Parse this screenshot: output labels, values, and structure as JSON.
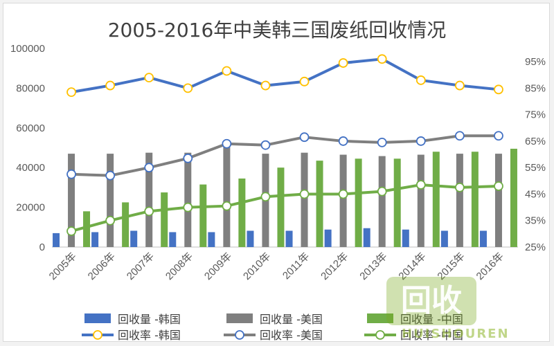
{
  "chart_data": {
    "type": "bar",
    "title": "2005-2016年中美韩三国废纸回收情况",
    "categories": [
      "2005年",
      "2006年",
      "2007年",
      "2008年",
      "2009年",
      "2010年",
      "2011年",
      "2012年",
      "2013年",
      "2014年",
      "2015年",
      "2016年"
    ],
    "left_axis": {
      "ylim": [
        0,
        100000
      ],
      "ticks": [
        "0",
        "20000",
        "40000",
        "60000",
        "80000",
        "100000"
      ]
    },
    "right_axis": {
      "ylim": [
        25,
        100
      ],
      "ticks": [
        "25%",
        "35%",
        "45%",
        "55%",
        "65%",
        "75%",
        "85%",
        "95%"
      ]
    },
    "series": [
      {
        "name": "回收量 -韩国",
        "type": "bar",
        "axis": "left",
        "color": "#4472c4",
        "values": [
          7000,
          7500,
          8200,
          7500,
          7500,
          8200,
          8200,
          8800,
          9500,
          8800,
          8200,
          8200
        ]
      },
      {
        "name": "回收量 -美国",
        "type": "bar",
        "axis": "left",
        "color": "#7f7f7f",
        "values": [
          47000,
          47000,
          47500,
          47500,
          51500,
          47000,
          47500,
          46500,
          45800,
          46500,
          47000,
          47000
        ]
      },
      {
        "name": "回收量 -中国",
        "type": "bar",
        "axis": "left",
        "color": "#70ad47",
        "values": [
          18000,
          22500,
          27500,
          31500,
          34500,
          40000,
          43500,
          44500,
          44500,
          48000,
          48000,
          49500
        ]
      },
      {
        "name": "回收率 -韩国",
        "type": "line",
        "axis": "right",
        "color": "#4472c4",
        "marker": "#ffc000",
        "values": [
          83.5,
          86,
          89,
          85,
          91.5,
          86,
          87.5,
          94.5,
          96,
          88,
          86,
          84.5
        ]
      },
      {
        "name": "回收率 -美国",
        "type": "line",
        "axis": "right",
        "color": "#7f7f7f",
        "marker": "#4472c4",
        "values": [
          52.5,
          52,
          55,
          58.5,
          64,
          63.5,
          66.5,
          65,
          64.5,
          65,
          67,
          67
        ]
      },
      {
        "name": "回收率 -中国",
        "type": "line",
        "axis": "right",
        "color": "#70ad47",
        "marker": "#70ad47",
        "values": [
          31,
          35,
          38.5,
          40,
          40.5,
          44,
          45,
          45,
          46,
          48.5,
          47.5,
          48
        ]
      }
    ],
    "legend": {
      "placement": "bottom",
      "rows": [
        [
          "回收量 -韩国",
          "回收量 -美国",
          "回收量 -中国"
        ],
        [
          "回收率 -韩国",
          "回收率 -美国",
          "回收率 -中国"
        ]
      ]
    },
    "grid": false
  },
  "watermark": {
    "badge": "回收",
    "text": "HUISHOUREN"
  }
}
